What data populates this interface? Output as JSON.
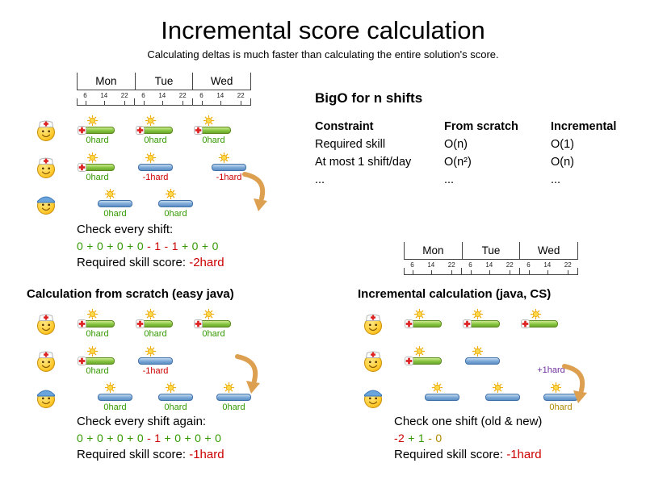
{
  "page": {
    "title": "Incremental score calculation",
    "subtitle": "Calculating deltas is much faster than calculating the entire solution's score."
  },
  "palette": {
    "green": "#339900",
    "red": "#cc0000",
    "purple": "#7030a0",
    "olive": "#b08800",
    "black": "#000000"
  },
  "timeline": {
    "days": [
      "Mon",
      "Tue",
      "Wed"
    ],
    "ticks": [
      "6",
      "14",
      "22"
    ]
  },
  "bigo": {
    "heading": "BigO for n shifts",
    "headers": [
      "Constraint",
      "From scratch",
      "Incremental"
    ],
    "rows": [
      [
        "Required skill",
        "O(n)",
        "O(1)"
      ],
      [
        "At most 1 shift/day",
        "O(n²)",
        "O(n)"
      ],
      [
        "...",
        "...",
        "..."
      ]
    ]
  },
  "schedules": {
    "initial": {
      "rows": [
        {
          "avatar": "nurse",
          "shifts": [
            {
              "slot": 4,
              "color": "green",
              "cross": true,
              "label": "0hard",
              "label_color": "green"
            },
            {
              "slot": 76,
              "color": "green",
              "cross": true,
              "label": "0hard",
              "label_color": "green"
            },
            {
              "slot": 148,
              "color": "green",
              "cross": true,
              "label": "0hard",
              "label_color": "green"
            }
          ]
        },
        {
          "avatar": "nurse",
          "shifts": [
            {
              "slot": 4,
              "color": "green",
              "cross": true,
              "label": "0hard",
              "label_color": "green"
            },
            {
              "slot": 76,
              "color": "blue",
              "cross": false,
              "label": "-1hard",
              "label_color": "red"
            },
            {
              "slot": 167,
              "color": "blue",
              "cross": false,
              "label": "-1hard",
              "label_color": "red"
            }
          ]
        },
        {
          "avatar": "bluecap",
          "shifts": [
            {
              "slot": 26,
              "color": "blue",
              "cross": false,
              "label": "0hard",
              "label_color": "green"
            },
            {
              "slot": 101,
              "color": "blue",
              "cross": false,
              "label": "0hard",
              "label_color": "green"
            }
          ]
        }
      ],
      "check_label": "Check every shift:",
      "sum_segments": [
        {
          "text": "0 + 0 + 0 + 0 ",
          "color": "green"
        },
        {
          "text": "- 1 - 1 ",
          "color": "red"
        },
        {
          "text": "+ 0 + 0",
          "color": "green"
        }
      ],
      "score_label": "Required skill score: ",
      "score_value": "-2hard"
    },
    "from_scratch": {
      "heading": "Calculation from scratch (easy java)",
      "rows": [
        {
          "avatar": "nurse",
          "shifts": [
            {
              "slot": 4,
              "color": "green",
              "cross": true,
              "label": "0hard",
              "label_color": "green"
            },
            {
              "slot": 76,
              "color": "green",
              "cross": true,
              "label": "0hard",
              "label_color": "green"
            },
            {
              "slot": 148,
              "color": "green",
              "cross": true,
              "label": "0hard",
              "label_color": "green"
            }
          ]
        },
        {
          "avatar": "nurse",
          "shifts": [
            {
              "slot": 4,
              "color": "green",
              "cross": true,
              "label": "0hard",
              "label_color": "green"
            },
            {
              "slot": 76,
              "color": "blue",
              "cross": false,
              "label": "-1hard",
              "label_color": "red"
            }
          ]
        },
        {
          "avatar": "bluecap",
          "shifts": [
            {
              "slot": 26,
              "color": "blue",
              "cross": false,
              "label": "0hard",
              "label_color": "green"
            },
            {
              "slot": 101,
              "color": "blue",
              "cross": false,
              "label": "0hard",
              "label_color": "green"
            },
            {
              "slot": 173,
              "color": "blue",
              "cross": false,
              "label": "0hard",
              "label_color": "green"
            }
          ]
        }
      ],
      "check_label": "Check every shift again:",
      "sum_segments": [
        {
          "text": "0 + 0 + 0 + 0 ",
          "color": "green"
        },
        {
          "text": "- 1 ",
          "color": "red"
        },
        {
          "text": "+ 0 + 0 + 0",
          "color": "green"
        }
      ],
      "score_label": "Required skill score: ",
      "score_value": "-1hard"
    },
    "incremental": {
      "heading": "Incremental calculation (java, CS)",
      "rows": [
        {
          "avatar": "nurse",
          "shifts": [
            {
              "slot": 4,
              "color": "green",
              "cross": true,
              "label": "",
              "label_color": "green"
            },
            {
              "slot": 76,
              "color": "green",
              "cross": true,
              "label": "",
              "label_color": "green"
            },
            {
              "slot": 148,
              "color": "green",
              "cross": true,
              "label": "",
              "label_color": "green"
            }
          ]
        },
        {
          "avatar": "nurse",
          "shifts": [
            {
              "slot": 4,
              "color": "green",
              "cross": true,
              "label": "",
              "label_color": "green"
            },
            {
              "slot": 76,
              "color": "blue",
              "cross": false,
              "label": "",
              "label_color": "green"
            }
          ]
        },
        {
          "avatar": "bluecap",
          "shifts": [
            {
              "slot": 26,
              "color": "blue",
              "cross": false,
              "label": "",
              "label_color": "green"
            },
            {
              "slot": 101,
              "color": "blue",
              "cross": false,
              "label": "",
              "label_color": "green"
            },
            {
              "slot": 173,
              "color": "blue",
              "cross": false,
              "label": "0hard",
              "label_color": "olive"
            }
          ]
        }
      ],
      "floating_labels": [
        {
          "row": 1,
          "slot": 160,
          "text": "+1hard",
          "color": "purple"
        }
      ],
      "check_label": "Check one shift (old & new)",
      "sum_segments": [
        {
          "text": "-2 ",
          "color": "red"
        },
        {
          "text": "+ 1 ",
          "color": "green"
        },
        {
          "text": "- 0",
          "color": "olive"
        }
      ],
      "score_label": "Required skill score: ",
      "score_value": "-1hard"
    }
  }
}
